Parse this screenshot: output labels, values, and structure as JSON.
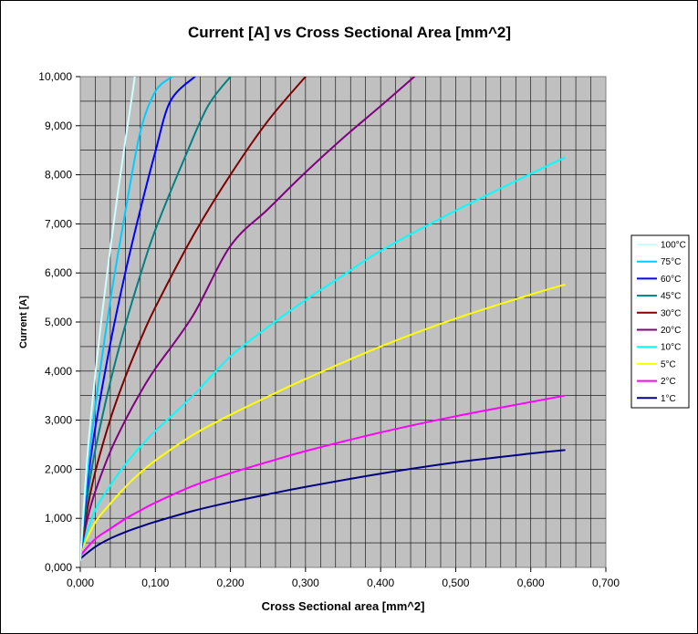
{
  "chart_data": {
    "type": "line",
    "title": "Current [A] vs Cross Sectional Area [mm^2]",
    "xlabel": "Cross Sectional area [mm^2]",
    "ylabel": "Current [A]",
    "xlim": [
      0,
      0.7
    ],
    "ylim": [
      0,
      10000
    ],
    "x_ticks": [
      "0,000",
      "0,100",
      "0,200",
      "0,300",
      "0,400",
      "0,500",
      "0,600",
      "0,700"
    ],
    "y_ticks": [
      "0,000",
      "1,000",
      "2,000",
      "3,000",
      "4,000",
      "5,000",
      "6,000",
      "7,000",
      "8,000",
      "9,000",
      "10,000"
    ],
    "grid": true,
    "plot_background": "#c0c0c0",
    "legend_position": "right",
    "series": [
      {
        "name": "100°C",
        "color": "#ccffff",
        "points": [
          [
            0.0,
            150
          ],
          [
            0.01,
            2370
          ],
          [
            0.02,
            3940
          ],
          [
            0.03,
            5280
          ],
          [
            0.04,
            6500
          ],
          [
            0.05,
            7630
          ],
          [
            0.06,
            8700
          ],
          [
            0.07,
            9710
          ],
          [
            0.0725,
            10000
          ]
        ]
      },
      {
        "name": "75°C",
        "color": "#00ccff",
        "points": [
          [
            0.0,
            180
          ],
          [
            0.01,
            1990
          ],
          [
            0.02,
            3290
          ],
          [
            0.04,
            5430
          ],
          [
            0.06,
            7250
          ],
          [
            0.08,
            8880
          ],
          [
            0.1,
            9700
          ],
          [
            0.1225,
            10000
          ]
        ]
      },
      {
        "name": "60°C",
        "color": "#0000ff",
        "points": [
          [
            0.0,
            200
          ],
          [
            0.01,
            1770
          ],
          [
            0.02,
            2850
          ],
          [
            0.04,
            4560
          ],
          [
            0.06,
            6010
          ],
          [
            0.08,
            7290
          ],
          [
            0.1,
            8470
          ],
          [
            0.12,
            9500
          ],
          [
            0.1525,
            10000
          ]
        ]
      },
      {
        "name": "45°C",
        "color": "#008080",
        "points": [
          [
            0.0,
            230
          ],
          [
            0.01,
            1500
          ],
          [
            0.02,
            2400
          ],
          [
            0.04,
            3780
          ],
          [
            0.06,
            4940
          ],
          [
            0.08,
            5960
          ],
          [
            0.1,
            6880
          ],
          [
            0.14,
            8380
          ],
          [
            0.17,
            9400
          ],
          [
            0.2,
            10000
          ]
        ]
      },
      {
        "name": "30°C",
        "color": "#800000",
        "points": [
          [
            0.0,
            260
          ],
          [
            0.01,
            1240
          ],
          [
            0.02,
            1950
          ],
          [
            0.04,
            3020
          ],
          [
            0.06,
            3880
          ],
          [
            0.08,
            4630
          ],
          [
            0.1,
            5300
          ],
          [
            0.15,
            6750
          ],
          [
            0.2,
            8000
          ],
          [
            0.25,
            9100
          ],
          [
            0.3,
            10000
          ]
        ]
      },
      {
        "name": "20°C",
        "color": "#800080",
        "points": [
          [
            0.0,
            280
          ],
          [
            0.01,
            1020
          ],
          [
            0.02,
            1550
          ],
          [
            0.04,
            2360
          ],
          [
            0.06,
            3000
          ],
          [
            0.08,
            3560
          ],
          [
            0.1,
            4050
          ],
          [
            0.15,
            5130
          ],
          [
            0.2,
            6550
          ],
          [
            0.25,
            7300
          ],
          [
            0.3,
            8050
          ],
          [
            0.35,
            8750
          ],
          [
            0.4,
            9400
          ],
          [
            0.445,
            10000
          ]
        ]
      },
      {
        "name": "10°C",
        "color": "#00ffff",
        "points": [
          [
            0.0,
            320
          ],
          [
            0.02,
            1170
          ],
          [
            0.04,
            1670
          ],
          [
            0.06,
            2100
          ],
          [
            0.08,
            2460
          ],
          [
            0.1,
            2780
          ],
          [
            0.15,
            3500
          ],
          [
            0.2,
            4300
          ],
          [
            0.25,
            4900
          ],
          [
            0.3,
            5450
          ],
          [
            0.35,
            5950
          ],
          [
            0.4,
            6450
          ],
          [
            0.5,
            7270
          ],
          [
            0.6,
            8020
          ],
          [
            0.645,
            8350
          ]
        ]
      },
      {
        "name": "5°C",
        "color": "#ffff00",
        "points": [
          [
            0.0,
            310
          ],
          [
            0.02,
            920
          ],
          [
            0.04,
            1300
          ],
          [
            0.06,
            1640
          ],
          [
            0.08,
            1930
          ],
          [
            0.1,
            2180
          ],
          [
            0.15,
            2700
          ],
          [
            0.2,
            3110
          ],
          [
            0.25,
            3480
          ],
          [
            0.3,
            3840
          ],
          [
            0.4,
            4500
          ],
          [
            0.5,
            5070
          ],
          [
            0.6,
            5560
          ],
          [
            0.645,
            5760
          ]
        ]
      },
      {
        "name": "2°C",
        "color": "#ff00ff",
        "points": [
          [
            0.0,
            240
          ],
          [
            0.02,
            580
          ],
          [
            0.04,
            790
          ],
          [
            0.06,
            990
          ],
          [
            0.08,
            1160
          ],
          [
            0.1,
            1320
          ],
          [
            0.15,
            1660
          ],
          [
            0.2,
            1920
          ],
          [
            0.25,
            2150
          ],
          [
            0.3,
            2370
          ],
          [
            0.4,
            2750
          ],
          [
            0.5,
            3080
          ],
          [
            0.6,
            3370
          ],
          [
            0.645,
            3500
          ]
        ]
      },
      {
        "name": "1°C",
        "color": "#000080",
        "points": [
          [
            0.0,
            180
          ],
          [
            0.02,
            420
          ],
          [
            0.04,
            590
          ],
          [
            0.06,
            720
          ],
          [
            0.08,
            830
          ],
          [
            0.1,
            930
          ],
          [
            0.15,
            1150
          ],
          [
            0.2,
            1330
          ],
          [
            0.25,
            1490
          ],
          [
            0.3,
            1640
          ],
          [
            0.4,
            1910
          ],
          [
            0.5,
            2140
          ],
          [
            0.6,
            2320
          ],
          [
            0.645,
            2390
          ]
        ]
      }
    ]
  }
}
